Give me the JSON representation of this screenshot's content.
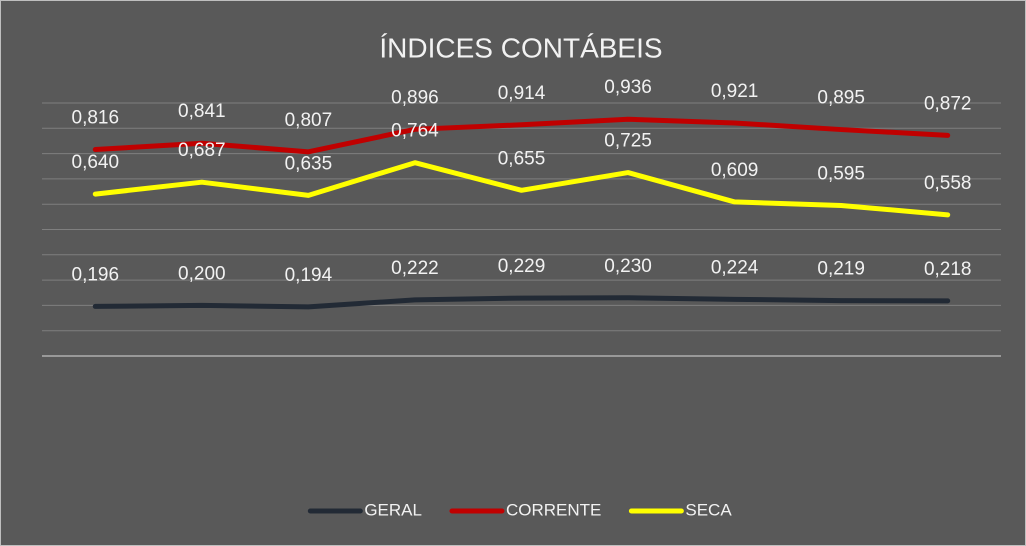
{
  "chart_data": {
    "type": "line",
    "title": "ÍNDICES CONTÁBEIS",
    "categories": [
      null,
      null,
      null,
      null,
      null,
      null,
      null,
      null,
      null
    ],
    "series": [
      {
        "name": "GERAL",
        "color": "#222a35",
        "values": [
          0.196,
          0.2,
          0.194,
          0.222,
          0.229,
          0.23,
          0.224,
          0.219,
          0.218
        ],
        "value_labels": [
          "0,196",
          "0,200",
          "0,194",
          "0,222",
          "0,229",
          "0,230",
          "0,224",
          "0,219",
          "0,218"
        ]
      },
      {
        "name": "CORRENTE",
        "color": "#c00000",
        "values": [
          0.816,
          0.841,
          0.807,
          0.896,
          0.914,
          0.936,
          0.921,
          0.895,
          0.872
        ],
        "value_labels": [
          "0,816",
          "0,841",
          "0,807",
          "0,896",
          "0,914",
          "0,936",
          "0,921",
          "0,895",
          "0,872"
        ]
      },
      {
        "name": "SECA",
        "color": "#ffff00",
        "values": [
          0.64,
          0.687,
          0.635,
          0.764,
          0.655,
          0.725,
          0.609,
          0.595,
          0.558
        ],
        "value_labels": [
          "0,640",
          "0,687",
          "0,635",
          "0,764",
          "0,655",
          "0,725",
          "0,609",
          "0,595",
          "0,558"
        ]
      }
    ],
    "ylim": [
      0,
      1
    ],
    "yticks": [
      0,
      0.1,
      0.2,
      0.3,
      0.4,
      0.5,
      0.6,
      0.7,
      0.8,
      0.9,
      1
    ],
    "grid": true,
    "legend": "bottom"
  }
}
